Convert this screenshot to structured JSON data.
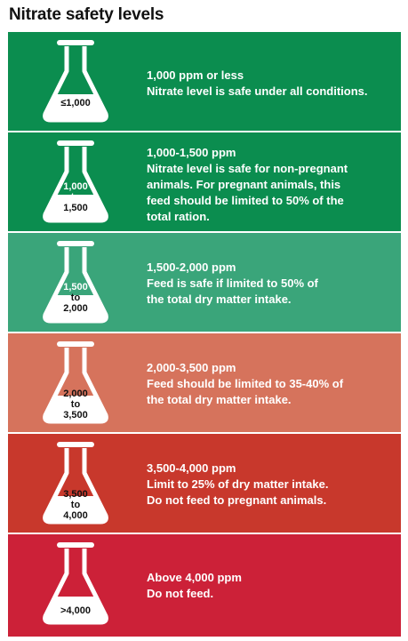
{
  "title": "Nitrate safety levels",
  "colors": [
    "#0b8d4f",
    "#0b8d4f",
    "#3aa57a",
    "#d6735c",
    "#c8382c",
    "#cc2138"
  ],
  "rows": [
    {
      "flask": {
        "top": "≤1,000",
        "middle": "",
        "bottom": ""
      },
      "text": [
        "1,000 ppm or less",
        "Nitrate level is safe under all conditions."
      ]
    },
    {
      "flask": {
        "top": "1,000",
        "middle": "to",
        "bottom": "1,500"
      },
      "text": [
        "1,000-1,500 ppm",
        "Nitrate level is safe for non-pregnant",
        "animals. For pregnant animals, this",
        "feed should be limited to 50% of the",
        "total ration."
      ]
    },
    {
      "flask": {
        "top": "1,500",
        "middle": "to",
        "bottom": "2,000"
      },
      "text": [
        "1,500-2,000 ppm",
        "Feed is safe if limited to 50% of",
        "the total dry matter intake."
      ]
    },
    {
      "flask": {
        "top": "2,000",
        "middle": "to",
        "bottom": "3,500"
      },
      "text": [
        "2,000-3,500 ppm",
        "Feed should be limited to 35-40% of",
        "the total dry matter intake."
      ]
    },
    {
      "flask": {
        "top": "3,500",
        "middle": "to",
        "bottom": "4,000"
      },
      "text": [
        "3,500-4,000 ppm",
        "Limit to 25% of dry matter intake.",
        "Do not feed to pregnant animals."
      ]
    },
    {
      "flask": {
        "top": ">4,000",
        "middle": "",
        "bottom": ""
      },
      "text": [
        "Above 4,000 ppm",
        "Do not feed."
      ]
    }
  ]
}
